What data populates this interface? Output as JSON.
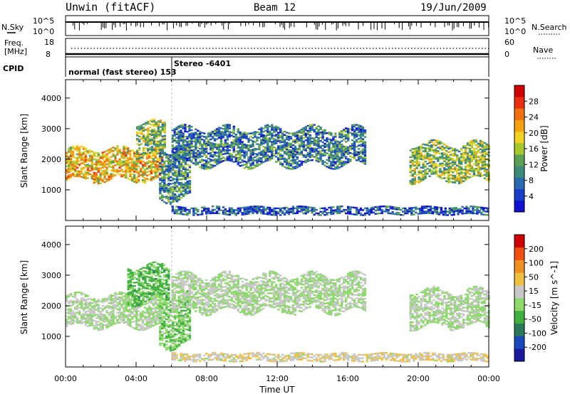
{
  "header": {
    "station": "Unwin (fitACF)",
    "beam": "Beam 12",
    "date": "19/Jun/2009"
  },
  "side_labels": {
    "nsky": "N.Sky",
    "nsearch": "N.Search",
    "freq_line1": "Freq.",
    "freq_line2": "[MHz]",
    "nave": "Nave",
    "cpid": "CPID"
  },
  "small_panel_ticks": {
    "nsky_top": "10^5",
    "nsky_bottom": "10^0",
    "nsearch_top": "10^5",
    "nsearch_bottom": "10^0",
    "freq_top": "18",
    "freq_bottom": "8",
    "nave_top": "60",
    "nave_bottom": "0"
  },
  "cpid_labels": {
    "mode1": "normal (fast stereo) 153",
    "mode2": "Stereo -6401"
  },
  "colors": {
    "nave_dots": "#000000",
    "freq_line": "#000000"
  },
  "chart_data": [
    {
      "type": "heatmap",
      "panel": "power",
      "ylabel": "Slant Range [km]",
      "ylim": [
        0,
        4600
      ],
      "yticks": [
        "1000",
        "2000",
        "3000",
        "4000"
      ],
      "xlim_hours": [
        0,
        24
      ],
      "colorbar": {
        "label": "Power [dB]",
        "ticks": [
          "4",
          "8",
          "12",
          "16",
          "20",
          "24",
          "28"
        ],
        "range": [
          0,
          32
        ],
        "colors": [
          "#1010d0",
          "#1a3fc8",
          "#2a6ab0",
          "#3c8a78",
          "#5aa055",
          "#a8c830",
          "#f0d020",
          "#f5a010",
          "#f07010",
          "#e83010",
          "#d00000"
        ]
      },
      "echo_regions": [
        {
          "t_start": 0.0,
          "t_end": 5.5,
          "r_min": 1300,
          "r_max": 2300,
          "power": 20
        },
        {
          "t_start": 4.0,
          "t_end": 5.6,
          "r_min": 2100,
          "r_max": 3200,
          "power": 14
        },
        {
          "t_start": 5.3,
          "t_end": 7.0,
          "r_min": 700,
          "r_max": 2300,
          "power": 10
        },
        {
          "t_start": 6.0,
          "t_end": 17.0,
          "r_min": 1800,
          "r_max": 3000,
          "power": 9
        },
        {
          "t_start": 19.5,
          "t_end": 24.0,
          "r_min": 1300,
          "r_max": 2500,
          "power": 15
        },
        {
          "t_start": 6.0,
          "t_end": 24.0,
          "r_min": 180,
          "r_max": 450,
          "power": 6
        }
      ]
    },
    {
      "type": "heatmap",
      "panel": "velocity",
      "ylabel": "Slant Range [km]",
      "ylim": [
        0,
        4600
      ],
      "yticks": [
        "1000",
        "2000",
        "3000",
        "4000"
      ],
      "xlim_hours": [
        0,
        24
      ],
      "colorbar": {
        "label": "Velocity [m s^-1]",
        "ticks": [
          "200",
          "100",
          "50",
          "15",
          "-15",
          "-50",
          "-100",
          "-200"
        ],
        "range": [
          -250,
          250
        ],
        "colors": [
          "#1a1aa0",
          "#1a4abe",
          "#2a7a5a",
          "#40b040",
          "#8cd86a",
          "#c8c8c8",
          "#f0c040",
          "#f09020",
          "#f05010",
          "#d00000"
        ]
      },
      "echo_regions": [
        {
          "t_start": 0.0,
          "t_end": 5.5,
          "r_min": 1300,
          "r_max": 2300,
          "velocity": 0
        },
        {
          "t_start": 3.5,
          "t_end": 5.8,
          "r_min": 2100,
          "r_max": 3300,
          "velocity": -60
        },
        {
          "t_start": 5.3,
          "t_end": 7.0,
          "r_min": 700,
          "r_max": 2300,
          "velocity": -40
        },
        {
          "t_start": 6.0,
          "t_end": 17.0,
          "r_min": 1800,
          "r_max": 3000,
          "velocity": 0
        },
        {
          "t_start": 19.5,
          "t_end": 24.0,
          "r_min": 1300,
          "r_max": 2500,
          "velocity": 0
        },
        {
          "t_start": 6.0,
          "t_end": 24.0,
          "r_min": 180,
          "r_max": 450,
          "velocity": 40
        }
      ]
    }
  ],
  "xaxis": {
    "label": "Time UT",
    "ticks": [
      "00:00",
      "04:00",
      "08:00",
      "12:00",
      "16:00",
      "20:00",
      "00:00"
    ]
  }
}
